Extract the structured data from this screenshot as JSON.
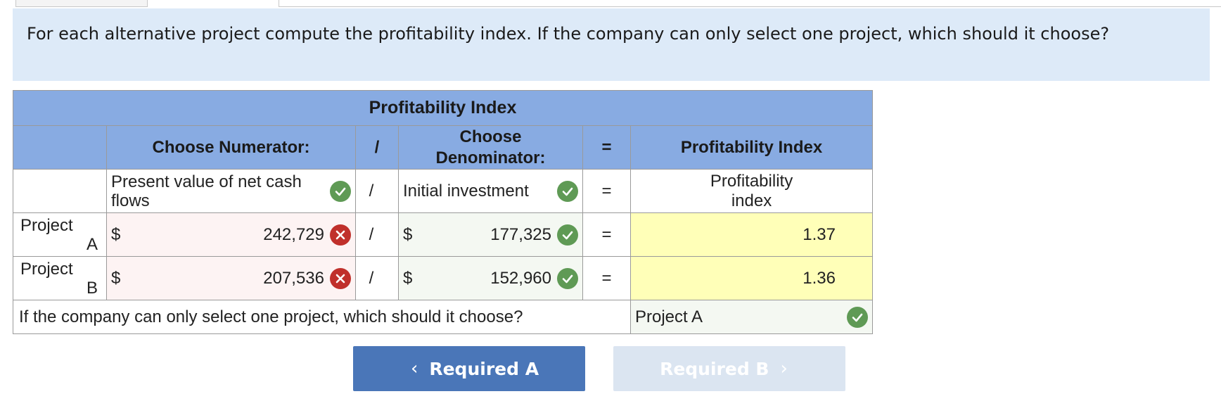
{
  "question": "For each alternative project compute the profitability index. If the company can only select one project, which should it choose?",
  "table": {
    "title": "Profitability Index",
    "header_numerator": "Choose Numerator:",
    "header_divide": "/",
    "header_denominator": "Choose Denominator:",
    "header_equals": "=",
    "header_result": "Profitability Index",
    "numerator_selection": "Present value of net cash flows",
    "divide_symbol": "/",
    "denominator_selection": "Initial investment",
    "equals_symbol": "=",
    "result_label": "Profitability index",
    "currency": "$",
    "rows": [
      {
        "label_line1": "Project",
        "label_line2": "A",
        "numerator": "242,729",
        "denominator": "177,325",
        "result": "1.37"
      },
      {
        "label_line1": "Project",
        "label_line2": "B",
        "numerator": "207,536",
        "denominator": "152,960",
        "result": "1.36"
      }
    ],
    "choice_question": "If the company can only select one project, which should it choose?",
    "choice_answer": "Project A"
  },
  "nav": {
    "prev_label": "Required A",
    "next_label": "Required B"
  },
  "colors": {
    "header_bg": "#88abe2",
    "correct": "#5f9a55",
    "incorrect": "#c0302b",
    "result_bg": "#ffffb8",
    "question_bg": "#ddeaf8"
  }
}
